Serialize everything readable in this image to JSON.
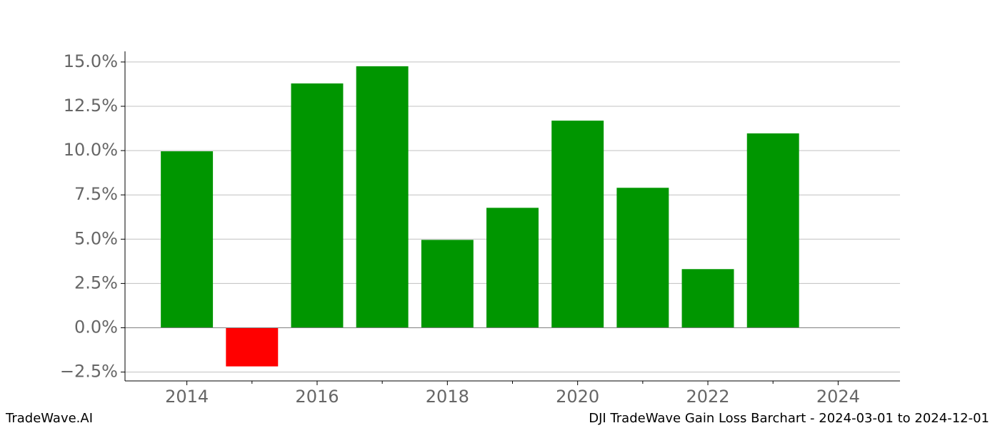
{
  "chart_data": {
    "type": "bar",
    "x": [
      2014,
      2015,
      2016,
      2017,
      2018,
      2019,
      2020,
      2021,
      2022,
      2023
    ],
    "values": [
      9.96,
      -2.18,
      13.79,
      14.76,
      4.96,
      6.77,
      11.69,
      7.9,
      3.31,
      10.97
    ],
    "positive_color": "#009600",
    "negative_color": "#ff0000",
    "xlim": [
      2013.05,
      2024.95
    ],
    "xticks": [
      2014,
      2016,
      2018,
      2020,
      2022,
      2024
    ],
    "xminorticks": [
      2015,
      2017,
      2019,
      2021,
      2023
    ],
    "ylim": [
      -3.0,
      15.6
    ],
    "yticks": [
      {
        "value": -2.5,
        "label": "−2.5%"
      },
      {
        "value": 0,
        "label": "0.0%"
      },
      {
        "value": 2.5,
        "label": "2.5%"
      },
      {
        "value": 5,
        "label": "5.0%"
      },
      {
        "value": 7.5,
        "label": "7.5%"
      },
      {
        "value": 10,
        "label": "10.0%"
      },
      {
        "value": 12.5,
        "label": "12.5%"
      },
      {
        "value": 15,
        "label": "15.0%"
      }
    ],
    "grid": true,
    "footer_left": "TradeWave.AI",
    "footer_right": "DJI TradeWave Gain Loss Barchart - 2024-03-01 to 2024-12-01"
  }
}
